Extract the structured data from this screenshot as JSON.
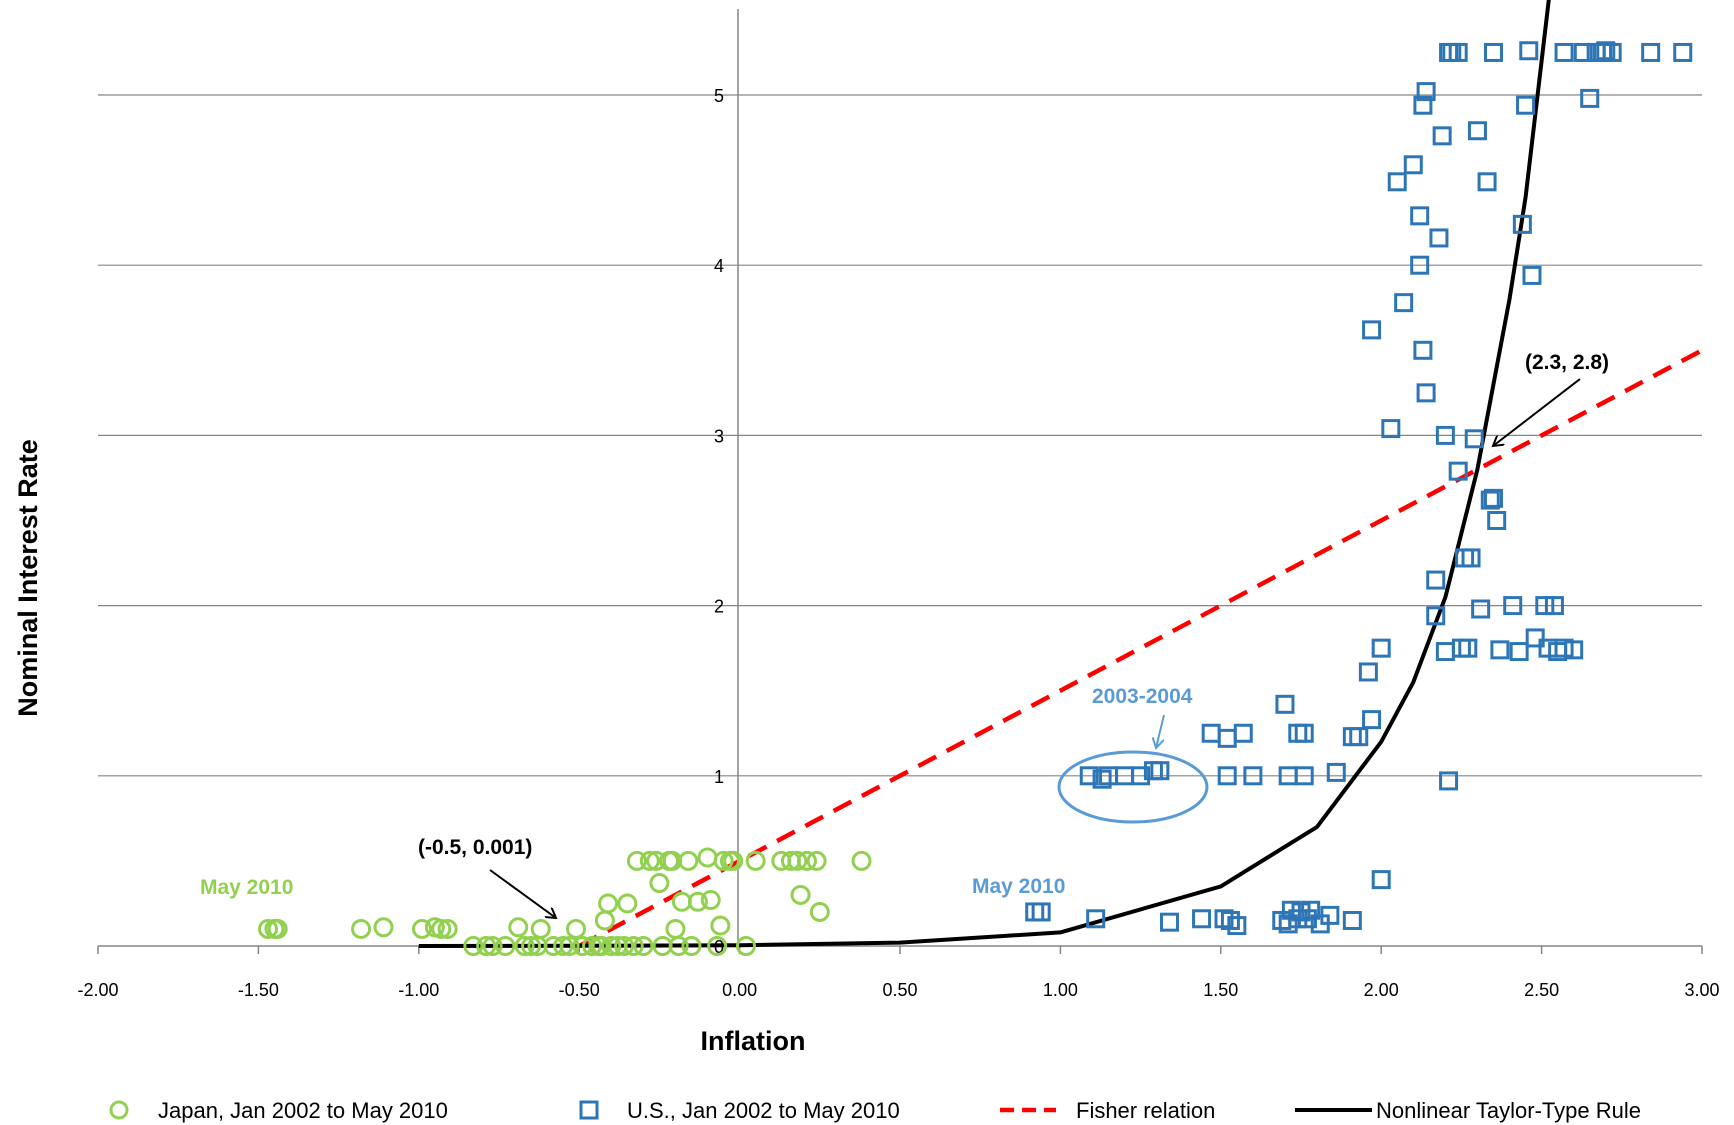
{
  "chart_data": {
    "type": "scatter",
    "title": "",
    "xlabel": "Inflation",
    "ylabel": "Nominal Interest Rate",
    "xlim": [
      -2.0,
      3.0
    ],
    "ylim": [
      0,
      5.5
    ],
    "x_ticks": [
      "-2.00",
      "-1.50",
      "-1.00",
      "-0.50",
      "0.00",
      "0.50",
      "1.00",
      "1.50",
      "2.00",
      "2.50",
      "3.00"
    ],
    "x_tick_values": [
      -2.0,
      -1.5,
      -1.0,
      -0.5,
      0.0,
      0.5,
      1.0,
      1.5,
      2.0,
      2.5,
      3.0
    ],
    "y_ticks": [
      "0",
      "1",
      "2",
      "3",
      "4",
      "5"
    ],
    "y_tick_values": [
      0,
      1,
      2,
      3,
      4,
      5
    ],
    "grid": "horizontal",
    "legend_position": "bottom",
    "colors": {
      "japan": "#92d050",
      "us": "#2e75b6",
      "fisher": "#ff0000",
      "taylor": "#000000",
      "us_annot": "#5b9bd5"
    },
    "series": [
      {
        "name": "Japan, Jan 2002 to May 2010",
        "kind": "scatter",
        "marker": "circle",
        "points": [
          [
            -1.47,
            0.1
          ],
          [
            -1.45,
            0.1
          ],
          [
            -1.44,
            0.1
          ],
          [
            -1.18,
            0.1
          ],
          [
            -1.11,
            0.11
          ],
          [
            -0.99,
            0.1
          ],
          [
            -0.95,
            0.11
          ],
          [
            -0.93,
            0.1
          ],
          [
            -0.91,
            0.1
          ],
          [
            -0.83,
            0.0
          ],
          [
            -0.79,
            0.0
          ],
          [
            -0.77,
            0.0
          ],
          [
            -0.73,
            0.0
          ],
          [
            -0.69,
            0.11
          ],
          [
            -0.67,
            0.0
          ],
          [
            -0.65,
            0.0
          ],
          [
            -0.63,
            0.0
          ],
          [
            -0.62,
            0.1
          ],
          [
            -0.58,
            0.0
          ],
          [
            -0.55,
            0.0
          ],
          [
            -0.53,
            0.0
          ],
          [
            -0.51,
            0.1
          ],
          [
            -0.49,
            0.0
          ],
          [
            -0.46,
            0.0
          ],
          [
            -0.44,
            0.0
          ],
          [
            -0.43,
            0.0
          ],
          [
            -0.42,
            0.15
          ],
          [
            -0.41,
            0.25
          ],
          [
            -0.4,
            0.0
          ],
          [
            -0.38,
            0.0
          ],
          [
            -0.36,
            0.0
          ],
          [
            -0.35,
            0.25
          ],
          [
            -0.33,
            0.0
          ],
          [
            -0.32,
            0.5
          ],
          [
            -0.3,
            0.0
          ],
          [
            -0.28,
            0.5
          ],
          [
            -0.26,
            0.5
          ],
          [
            -0.25,
            0.37
          ],
          [
            -0.24,
            0.0
          ],
          [
            -0.22,
            0.5
          ],
          [
            -0.21,
            0.5
          ],
          [
            -0.2,
            0.1
          ],
          [
            -0.19,
            0.0
          ],
          [
            -0.18,
            0.26
          ],
          [
            -0.16,
            0.5
          ],
          [
            -0.15,
            0.0
          ],
          [
            -0.13,
            0.26
          ],
          [
            -0.1,
            0.52
          ],
          [
            -0.09,
            0.27
          ],
          [
            -0.07,
            0.0
          ],
          [
            -0.06,
            0.12
          ],
          [
            -0.05,
            0.5
          ],
          [
            -0.03,
            0.5
          ],
          [
            -0.02,
            0.5
          ],
          [
            0.02,
            0.0
          ],
          [
            0.05,
            0.5
          ],
          [
            0.13,
            0.5
          ],
          [
            0.16,
            0.5
          ],
          [
            0.18,
            0.5
          ],
          [
            0.19,
            0.3
          ],
          [
            0.21,
            0.5
          ],
          [
            0.24,
            0.5
          ],
          [
            0.25,
            0.2
          ],
          [
            0.38,
            0.5
          ]
        ]
      },
      {
        "name": "U.S., Jan 2002 to May 2010",
        "kind": "scatter",
        "marker": "square",
        "points": [
          [
            0.92,
            0.2
          ],
          [
            0.94,
            0.2
          ],
          [
            1.11,
            0.16
          ],
          [
            1.09,
            1.0
          ],
          [
            1.13,
            0.98
          ],
          [
            1.15,
            1.0
          ],
          [
            1.2,
            1.0
          ],
          [
            1.25,
            1.0
          ],
          [
            1.29,
            1.03
          ],
          [
            1.31,
            1.03
          ],
          [
            1.34,
            0.14
          ],
          [
            1.44,
            0.16
          ],
          [
            1.47,
            1.25
          ],
          [
            1.51,
            0.16
          ],
          [
            1.52,
            1.22
          ],
          [
            1.53,
            0.15
          ],
          [
            1.52,
            1.0
          ],
          [
            1.55,
            0.12
          ],
          [
            1.57,
            1.25
          ],
          [
            1.6,
            1.0
          ],
          [
            1.69,
            0.15
          ],
          [
            1.7,
            1.42
          ],
          [
            1.71,
            1.0
          ],
          [
            1.71,
            0.13
          ],
          [
            1.72,
            0.21
          ],
          [
            1.74,
            0.16
          ],
          [
            1.74,
            1.25
          ],
          [
            1.76,
            1.25
          ],
          [
            1.75,
            0.2
          ],
          [
            1.76,
            1.0
          ],
          [
            1.77,
            0.16
          ],
          [
            1.78,
            0.21
          ],
          [
            1.81,
            0.13
          ],
          [
            1.84,
            0.18
          ],
          [
            1.86,
            1.02
          ],
          [
            1.91,
            1.23
          ],
          [
            1.91,
            0.15
          ],
          [
            1.93,
            1.23
          ],
          [
            1.96,
            1.61
          ],
          [
            1.97,
            1.33
          ],
          [
            1.97,
            3.62
          ],
          [
            2.0,
            1.75
          ],
          [
            2.0,
            0.39
          ],
          [
            2.03,
            3.04
          ],
          [
            2.05,
            4.49
          ],
          [
            2.07,
            3.78
          ],
          [
            2.1,
            4.59
          ],
          [
            2.12,
            4.29
          ],
          [
            2.12,
            4.0
          ],
          [
            2.13,
            3.5
          ],
          [
            2.13,
            4.94
          ],
          [
            2.14,
            5.02
          ],
          [
            2.14,
            3.25
          ],
          [
            2.17,
            2.15
          ],
          [
            2.17,
            1.94
          ],
          [
            2.18,
            4.16
          ],
          [
            2.19,
            4.76
          ],
          [
            2.2,
            3.0
          ],
          [
            2.2,
            1.73
          ],
          [
            2.21,
            0.97
          ],
          [
            2.21,
            5.25
          ],
          [
            2.22,
            5.25
          ],
          [
            2.24,
            5.25
          ],
          [
            2.24,
            2.79
          ],
          [
            2.25,
            1.75
          ],
          [
            2.26,
            2.28
          ],
          [
            2.27,
            1.75
          ],
          [
            2.28,
            2.28
          ],
          [
            2.29,
            2.98
          ],
          [
            2.3,
            4.79
          ],
          [
            2.31,
            1.98
          ],
          [
            2.33,
            4.49
          ],
          [
            2.34,
            2.62
          ],
          [
            2.35,
            5.25
          ],
          [
            2.35,
            2.63
          ],
          [
            2.36,
            2.5
          ],
          [
            2.37,
            1.74
          ],
          [
            2.41,
            2.0
          ],
          [
            2.43,
            1.73
          ],
          [
            2.44,
            4.24
          ],
          [
            2.45,
            4.94
          ],
          [
            2.46,
            5.26
          ],
          [
            2.47,
            3.94
          ],
          [
            2.48,
            1.81
          ],
          [
            2.51,
            2.0
          ],
          [
            2.52,
            1.75
          ],
          [
            2.54,
            2.0
          ],
          [
            2.55,
            1.73
          ],
          [
            2.57,
            1.75
          ],
          [
            2.57,
            5.25
          ],
          [
            2.6,
            1.74
          ],
          [
            2.63,
            5.25
          ],
          [
            2.65,
            4.98
          ],
          [
            2.67,
            5.25
          ],
          [
            2.69,
            5.25
          ],
          [
            2.7,
            5.26
          ],
          [
            2.72,
            5.25
          ],
          [
            2.84,
            5.25
          ],
          [
            2.94,
            5.25
          ]
        ]
      },
      {
        "name": "Fisher relation",
        "kind": "line",
        "style": "dashed",
        "points": [
          [
            -0.5,
            0.0
          ],
          [
            3.0,
            3.5
          ]
        ]
      },
      {
        "name": "Nonlinear Taylor-Type Rule",
        "kind": "line",
        "style": "solid",
        "points": [
          [
            -1.0,
            0.0
          ],
          [
            -0.5,
            0.001
          ],
          [
            0.0,
            0.004
          ],
          [
            0.5,
            0.02
          ],
          [
            1.0,
            0.08
          ],
          [
            1.5,
            0.35
          ],
          [
            1.8,
            0.7
          ],
          [
            2.0,
            1.2
          ],
          [
            2.1,
            1.55
          ],
          [
            2.2,
            2.05
          ],
          [
            2.3,
            2.8
          ],
          [
            2.4,
            3.8
          ],
          [
            2.45,
            4.4
          ],
          [
            2.5,
            5.2
          ],
          [
            2.55,
            6.0
          ]
        ]
      }
    ],
    "annotations": [
      {
        "text": "(-0.5, 0.001)",
        "color": "#000000",
        "points_to": [
          -0.55,
          0.03
        ]
      },
      {
        "text": "(2.3, 2.8)",
        "color": "#000000",
        "points_to": [
          2.3,
          2.9
        ]
      },
      {
        "text": "2003-2004",
        "color": "#5b9bd5",
        "points_to": [
          1.3,
          1.13
        ]
      },
      {
        "text": "May 2010",
        "color": "#92d050",
        "points_to": null
      },
      {
        "text": "May 2010",
        "color": "#5b9bd5",
        "points_to": null
      }
    ]
  }
}
